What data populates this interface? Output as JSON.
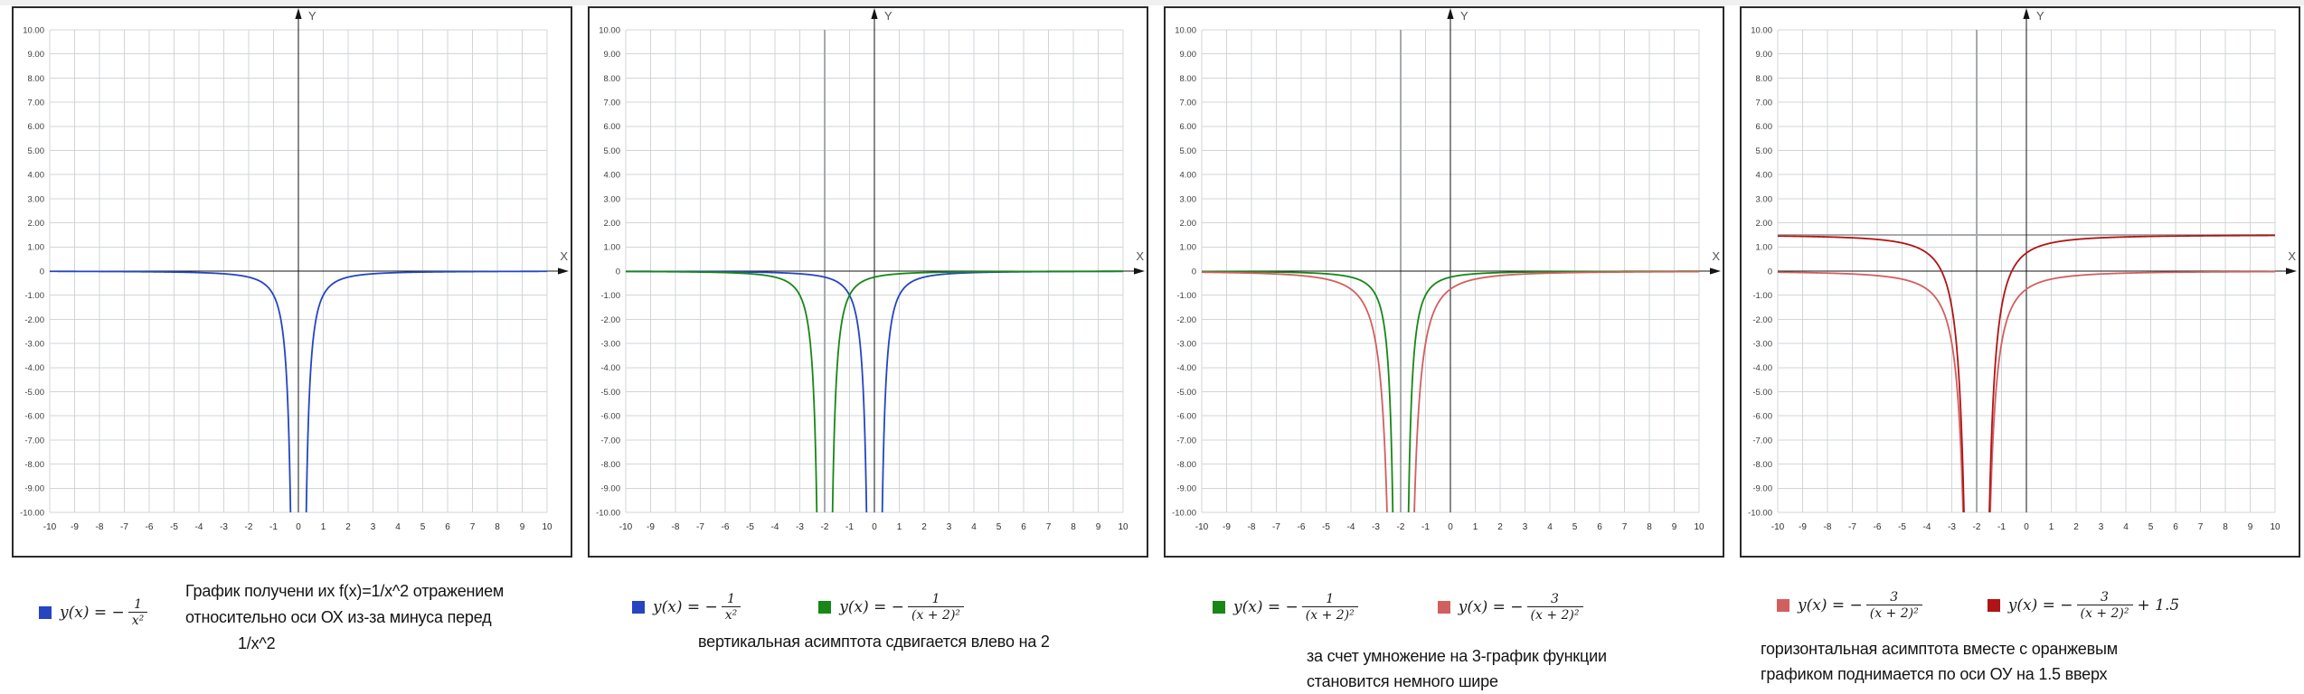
{
  "panels": [
    {
      "legend": [
        {
          "color": "#2546c0",
          "pre": "y(x) = −",
          "num": "1",
          "den": "x²",
          "post": ""
        }
      ],
      "caption_lines": [
        "График получени их f(x)=1/x^2 отражением",
        "относительно оси ОХ из-за минуса перед",
        "1/x^2"
      ]
    },
    {
      "legend": [
        {
          "color": "#2546c0",
          "pre": "y(x) = −",
          "num": "1",
          "den": "x²",
          "post": ""
        },
        {
          "color": "#178717",
          "pre": "y(x) = −",
          "num": "1",
          "den": "(x + 2)²",
          "post": ""
        }
      ],
      "caption_lines": [
        "вертикальная асимптота сдвигается влево на 2"
      ]
    },
    {
      "legend": [
        {
          "color": "#178717",
          "pre": "y(x) = −",
          "num": "1",
          "den": "(x + 2)²",
          "post": ""
        },
        {
          "color": "#d25f5f",
          "pre": "y(x) = −",
          "num": "3",
          "den": "(x + 2)²",
          "post": ""
        }
      ],
      "caption_lines": [
        "за счет умножение на 3-график функции",
        "становится немного шире"
      ]
    },
    {
      "legend": [
        {
          "color": "#d25f5f",
          "pre": "y(x) = −",
          "num": "3",
          "den": "(x + 2)²",
          "post": ""
        },
        {
          "color": "#b01414",
          "pre": "y(x) = −",
          "num": "3",
          "den": "(x + 2)²",
          "post": "+ 1.5"
        }
      ],
      "caption_lines": [
        "горизонтальная асимптота вместе с оранжевым",
        "графиком поднимается по оси ОУ на 1.5 вверх"
      ]
    }
  ],
  "chart_data": [
    {
      "type": "line",
      "x_range": [
        -10,
        10
      ],
      "y_range": [
        -10,
        10
      ],
      "grid": true,
      "x_axis_label": "X",
      "y_axis_label": "Y",
      "x_ticks": [
        -10,
        -9,
        -8,
        -7,
        -6,
        -5,
        -4,
        -3,
        -2,
        -1,
        0,
        1,
        2,
        3,
        4,
        5,
        6,
        7,
        8,
        9,
        10
      ],
      "y_tick_labels": [
        "10.00",
        "9.00",
        "8.00",
        "7.00",
        "6.00",
        "5.00",
        "4.00",
        "3.00",
        "2.00",
        "1.00",
        "0",
        "-1.00",
        "-2.00",
        "-3.00",
        "-4.00",
        "-5.00",
        "-6.00",
        "-7.00",
        "-8.00",
        "-9.00",
        "-10.00"
      ],
      "series": [
        {
          "name": "y(x) = -1/x^2",
          "color": "#2546c0",
          "coef": 1,
          "pole": 0,
          "offset": 0
        }
      ],
      "asymptotes": []
    },
    {
      "type": "line",
      "x_range": [
        -10,
        10
      ],
      "y_range": [
        -10,
        10
      ],
      "grid": true,
      "x_axis_label": "X",
      "y_axis_label": "Y",
      "x_ticks": [
        -10,
        -9,
        -8,
        -7,
        -6,
        -5,
        -4,
        -3,
        -2,
        -1,
        0,
        1,
        2,
        3,
        4,
        5,
        6,
        7,
        8,
        9,
        10
      ],
      "y_tick_labels": [
        "10.00",
        "9.00",
        "8.00",
        "7.00",
        "6.00",
        "5.00",
        "4.00",
        "3.00",
        "2.00",
        "1.00",
        "0",
        "-1.00",
        "-2.00",
        "-3.00",
        "-4.00",
        "-5.00",
        "-6.00",
        "-7.00",
        "-8.00",
        "-9.00",
        "-10.00"
      ],
      "series": [
        {
          "name": "y(x) = -1/x^2",
          "color": "#2546c0",
          "coef": 1,
          "pole": 0,
          "offset": 0
        },
        {
          "name": "y(x) = -1/(x+2)^2",
          "color": "#178717",
          "coef": 1,
          "pole": -2,
          "offset": 0
        }
      ],
      "asymptotes": [
        {
          "type": "vertical",
          "x": -2
        }
      ]
    },
    {
      "type": "line",
      "x_range": [
        -10,
        10
      ],
      "y_range": [
        -10,
        10
      ],
      "grid": true,
      "x_axis_label": "X",
      "y_axis_label": "Y",
      "x_ticks": [
        -10,
        -9,
        -8,
        -7,
        -6,
        -5,
        -4,
        -3,
        -2,
        -1,
        0,
        1,
        2,
        3,
        4,
        5,
        6,
        7,
        8,
        9,
        10
      ],
      "y_tick_labels": [
        "10.00",
        "9.00",
        "8.00",
        "7.00",
        "6.00",
        "5.00",
        "4.00",
        "3.00",
        "2.00",
        "1.00",
        "0",
        "-1.00",
        "-2.00",
        "-3.00",
        "-4.00",
        "-5.00",
        "-6.00",
        "-7.00",
        "-8.00",
        "-9.00",
        "-10.00"
      ],
      "series": [
        {
          "name": "y(x) = -1/(x+2)^2",
          "color": "#178717",
          "coef": 1,
          "pole": -2,
          "offset": 0
        },
        {
          "name": "y(x) = -3/(x+2)^2",
          "color": "#d25f5f",
          "coef": 3,
          "pole": -2,
          "offset": 0
        }
      ],
      "asymptotes": [
        {
          "type": "vertical",
          "x": -2
        }
      ]
    },
    {
      "type": "line",
      "x_range": [
        -10,
        10
      ],
      "y_range": [
        -10,
        10
      ],
      "grid": true,
      "x_axis_label": "X",
      "y_axis_label": "Y",
      "x_ticks": [
        -10,
        -9,
        -8,
        -7,
        -6,
        -5,
        -4,
        -3,
        -2,
        -1,
        0,
        1,
        2,
        3,
        4,
        5,
        6,
        7,
        8,
        9,
        10
      ],
      "y_tick_labels": [
        "10.00",
        "9.00",
        "8.00",
        "7.00",
        "6.00",
        "5.00",
        "4.00",
        "3.00",
        "2.00",
        "1.00",
        "0",
        "-1.00",
        "-2.00",
        "-3.00",
        "-4.00",
        "-5.00",
        "-6.00",
        "-7.00",
        "-8.00",
        "-9.00",
        "-10.00"
      ],
      "series": [
        {
          "name": "y(x) = -3/(x+2)^2",
          "color": "#d25f5f",
          "coef": 3,
          "pole": -2,
          "offset": 0
        },
        {
          "name": "y(x) = -3/(x+2)^2 + 1.5",
          "color": "#b01414",
          "coef": 3,
          "pole": -2,
          "offset": 1.5
        }
      ],
      "asymptotes": [
        {
          "type": "vertical",
          "x": -2
        },
        {
          "type": "horizontal",
          "y": 1.5
        }
      ]
    }
  ]
}
